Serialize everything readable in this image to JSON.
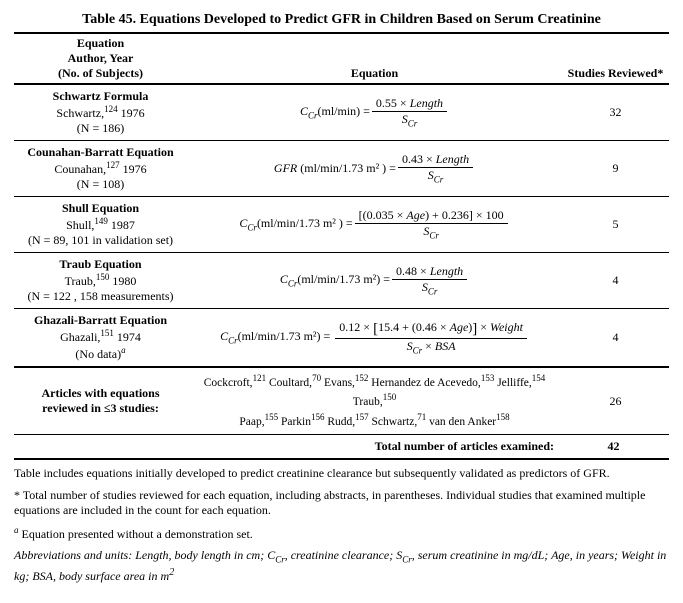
{
  "title": "Table 45. Equations Developed to Predict GFR in Children Based on Serum Creatinine",
  "headers": {
    "author": "Equation\nAuthor, Year\n(No. of Subjects)",
    "equation": "Equation",
    "studies": "Studies Reviewed*"
  },
  "rows": [
    {
      "name": "Schwartz Formula",
      "ref_author": "Schwartz,",
      "ref_num": "124",
      "ref_year": " 1976",
      "n": "(N = 186)",
      "lhs_sym": "C",
      "lhs_sub": "Cr",
      "lhs_unit": "(ml/min) = ",
      "num": "0.55 × Length",
      "den_sym": "S",
      "den_sub": "Cr",
      "studies": "32"
    },
    {
      "name": "Counahan-Barratt Equation",
      "ref_author": "Counahan,",
      "ref_num": "127",
      "ref_year": " 1976",
      "n": "(N = 108)",
      "lhs_sym": "GFR",
      "lhs_sub": "",
      "lhs_unit": " (ml/min/1.73 m² ) = ",
      "num": "0.43 × Length",
      "den_sym": "S",
      "den_sub": "Cr",
      "studies": "9"
    },
    {
      "name": "Shull Equation",
      "ref_author": "Shull,",
      "ref_num": "149",
      "ref_year": " 1987",
      "n": "(N = 89, 101 in validation set)",
      "lhs_sym": "C",
      "lhs_sub": "Cr",
      "lhs_unit": "(ml/min/1.73 m² ) = ",
      "num": "[(0.035 × Age) + 0.236] × 100",
      "den_sym": "S",
      "den_sub": "Cr",
      "studies": "5"
    },
    {
      "name": "Traub Equation",
      "ref_author": "Traub,",
      "ref_num": "150",
      "ref_year": " 1980",
      "n": "(N = 122 , 158 measurements)",
      "lhs_sym": "C",
      "lhs_sub": "Cr",
      "lhs_unit": "(ml/min/1.73 m²) = ",
      "num": "0.48 × Length",
      "den_sym": "S",
      "den_sub": "Cr",
      "studies": "4"
    }
  ],
  "ghazali": {
    "name": "Ghazali-Barratt Equation",
    "ref_author": "Ghazali,",
    "ref_num": "151",
    "ref_year": " 1974",
    "n_html": "(No data)",
    "n_sup": "a",
    "lhs_sym": "C",
    "lhs_sub": "Cr",
    "lhs_unit": "(ml/min/1.73 m²) = ",
    "num": "0.12 × [15.4 + (0.46 × Age)] × Weight",
    "den": "S_Cr × BSA",
    "studies": "4"
  },
  "articles_row": {
    "label": "Articles with equations reviewed in ≤3 studies:",
    "text_parts": [
      {
        "t": "Cockcroft,",
        "s": "121"
      },
      {
        "t": " Coultard,",
        "s": "70"
      },
      {
        "t": " Evans,",
        "s": "152"
      },
      {
        "t": " Hernandez de Acevedo,",
        "s": "153"
      },
      {
        "t": " Jelliffe,",
        "s": "154"
      },
      {
        "t": " Traub,",
        "s": "150"
      },
      {
        "t": " Paap,",
        "s": "155"
      },
      {
        "t": " Parkin",
        "s": "156"
      },
      {
        "t": " Rudd,",
        "s": "157"
      },
      {
        "t": " Schwartz,",
        "s": "71"
      },
      {
        "t": " van den Anker",
        "s": "158"
      }
    ],
    "studies": "26"
  },
  "total": {
    "label": "Total number of articles examined:",
    "value": "42"
  },
  "footnotes": {
    "line1": "Table includes equations initially developed to predict creatinine clearance but subsequently validated as predictors of GFR.",
    "star": "* Total number of studies reviewed for each equation, including abstracts, in parentheses. Individual studies that examined multiple equations are included in the count for each equation.",
    "a_sup": "a",
    "a_text": " Equation presented without a demonstration set.",
    "abbrev": "Abbreviations and units: Length, body length in cm; C_Cr, creatinine clearance; S_Cr, serum creatinine in mg/dL; Age, in years; Weight in kg; BSA, body surface area in m²"
  }
}
